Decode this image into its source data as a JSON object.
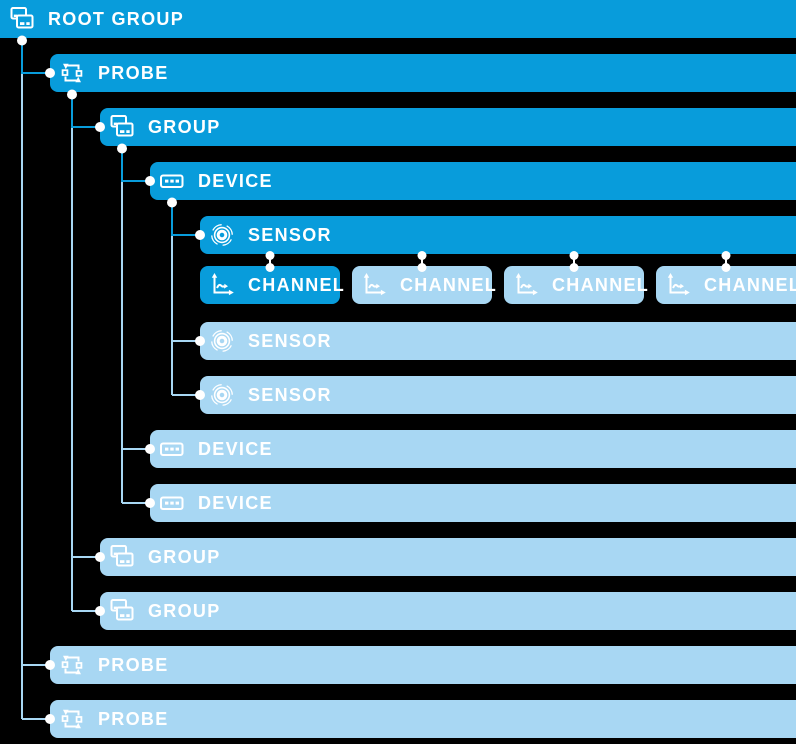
{
  "colors": {
    "background": "#000000",
    "bright": "#089CDB",
    "light": "#A8D7F3",
    "text": "#FFFFFF",
    "connector_dot": "#FFFFFF"
  },
  "tree": {
    "label": "ROOT GROUP",
    "type": "group",
    "variant": "bright",
    "children": [
      {
        "label": "PROBE",
        "type": "probe",
        "variant": "bright",
        "children": [
          {
            "label": "GROUP",
            "type": "group",
            "variant": "bright",
            "children": [
              {
                "label": "DEVICE",
                "type": "device",
                "variant": "bright",
                "children": [
                  {
                    "label": "SENSOR",
                    "type": "sensor",
                    "variant": "bright",
                    "channels": [
                      {
                        "label": "CHANNEL",
                        "type": "channel",
                        "variant": "bright"
                      },
                      {
                        "label": "CHANNEL",
                        "type": "channel",
                        "variant": "light"
                      },
                      {
                        "label": "CHANNEL",
                        "type": "channel",
                        "variant": "light"
                      },
                      {
                        "label": "CHANNEL",
                        "type": "channel",
                        "variant": "light"
                      }
                    ]
                  },
                  {
                    "label": "SENSOR",
                    "type": "sensor",
                    "variant": "light"
                  },
                  {
                    "label": "SENSOR",
                    "type": "sensor",
                    "variant": "light"
                  }
                ]
              },
              {
                "label": "DEVICE",
                "type": "device",
                "variant": "light"
              },
              {
                "label": "DEVICE",
                "type": "device",
                "variant": "light"
              }
            ]
          },
          {
            "label": "GROUP",
            "type": "group",
            "variant": "light"
          },
          {
            "label": "GROUP",
            "type": "group",
            "variant": "light"
          }
        ]
      },
      {
        "label": "PROBE",
        "type": "probe",
        "variant": "light"
      },
      {
        "label": "PROBE",
        "type": "probe",
        "variant": "light"
      }
    ]
  }
}
